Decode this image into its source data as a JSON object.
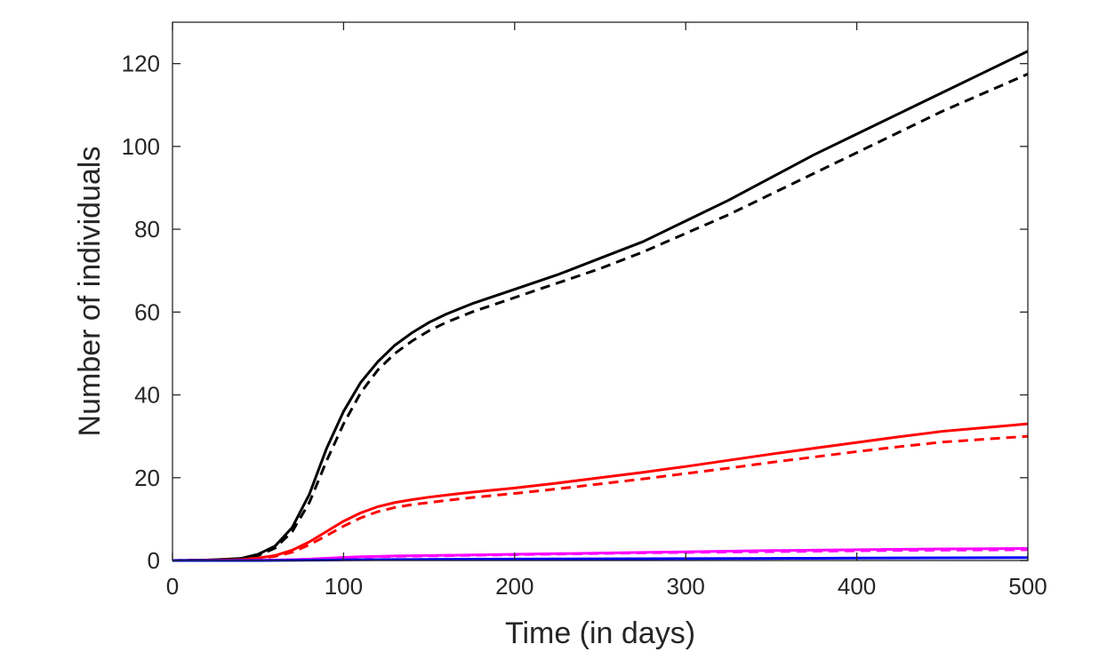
{
  "chart_data": {
    "type": "line",
    "title": "",
    "xlabel": "Time (in days)",
    "ylabel": "Number of individuals",
    "xlim": [
      0,
      500
    ],
    "ylim": [
      0,
      130
    ],
    "xticks": [
      0,
      100,
      200,
      300,
      400,
      500
    ],
    "yticks": [
      0,
      20,
      40,
      60,
      80,
      100,
      120
    ],
    "grid": false,
    "legend": "none",
    "x": [
      0,
      20,
      40,
      50,
      60,
      70,
      80,
      90,
      100,
      110,
      120,
      130,
      140,
      150,
      160,
      175,
      200,
      225,
      250,
      275,
      300,
      325,
      350,
      375,
      400,
      425,
      450,
      475,
      500
    ],
    "series": [
      {
        "color": "#000000",
        "style": "solid",
        "values": [
          0,
          0.1,
          0.5,
          1.5,
          3.5,
          8,
          16,
          27,
          36,
          43,
          48,
          52,
          55,
          57.5,
          59.5,
          62,
          65.5,
          69,
          73,
          77,
          82,
          87,
          92.5,
          98,
          103,
          108,
          113,
          118,
          123
        ]
      },
      {
        "color": "#000000",
        "style": "dashed",
        "values": [
          0,
          0.1,
          0.4,
          1.2,
          3,
          7,
          14,
          24,
          33,
          40.5,
          46,
          50,
          53,
          55.5,
          57.5,
          60,
          63.5,
          67,
          70.5,
          74.5,
          79,
          83.5,
          88.5,
          93.5,
          98.5,
          103.5,
          108.5,
          113,
          117.5
        ]
      },
      {
        "color": "#ff0000",
        "style": "solid",
        "values": [
          0,
          0.05,
          0.2,
          0.6,
          1.2,
          2.5,
          4.5,
          7,
          9.5,
          11.5,
          13,
          14,
          14.7,
          15.3,
          15.8,
          16.5,
          17.5,
          18.7,
          20,
          21.3,
          22.7,
          24.2,
          25.7,
          27.1,
          28.5,
          29.9,
          31.2,
          32.1,
          33
        ]
      },
      {
        "color": "#ff0000",
        "style": "dashed",
        "values": [
          0,
          0.05,
          0.2,
          0.5,
          1,
          2,
          3.8,
          6,
          8.3,
          10.3,
          11.8,
          12.8,
          13.5,
          14,
          14.5,
          15.2,
          16.2,
          17.3,
          18.5,
          19.7,
          21,
          22.3,
          23.7,
          25,
          26.3,
          27.5,
          28.6,
          29.3,
          30
        ]
      },
      {
        "color": "#ff00ff",
        "style": "solid",
        "values": [
          0,
          0,
          0.02,
          0.05,
          0.1,
          0.2,
          0.35,
          0.55,
          0.75,
          0.9,
          1,
          1.1,
          1.15,
          1.2,
          1.25,
          1.35,
          1.5,
          1.65,
          1.8,
          1.95,
          2.1,
          2.25,
          2.4,
          2.5,
          2.6,
          2.7,
          2.8,
          2.85,
          2.9
        ]
      },
      {
        "color": "#ff00ff",
        "style": "dashed",
        "values": [
          0,
          0,
          0.02,
          0.05,
          0.1,
          0.18,
          0.3,
          0.5,
          0.68,
          0.82,
          0.92,
          1,
          1.05,
          1.1,
          1.15,
          1.25,
          1.4,
          1.55,
          1.7,
          1.85,
          1.95,
          2.05,
          2.15,
          2.25,
          2.35,
          2.45,
          2.5,
          2.55,
          2.6
        ]
      },
      {
        "color": "#0000ff",
        "style": "solid",
        "values": [
          0,
          0,
          0,
          0.01,
          0.02,
          0.04,
          0.07,
          0.11,
          0.15,
          0.18,
          0.21,
          0.23,
          0.25,
          0.27,
          0.29,
          0.31,
          0.34,
          0.37,
          0.4,
          0.43,
          0.46,
          0.49,
          0.52,
          0.55,
          0.58,
          0.61,
          0.64,
          0.67,
          0.7
        ]
      }
    ]
  }
}
